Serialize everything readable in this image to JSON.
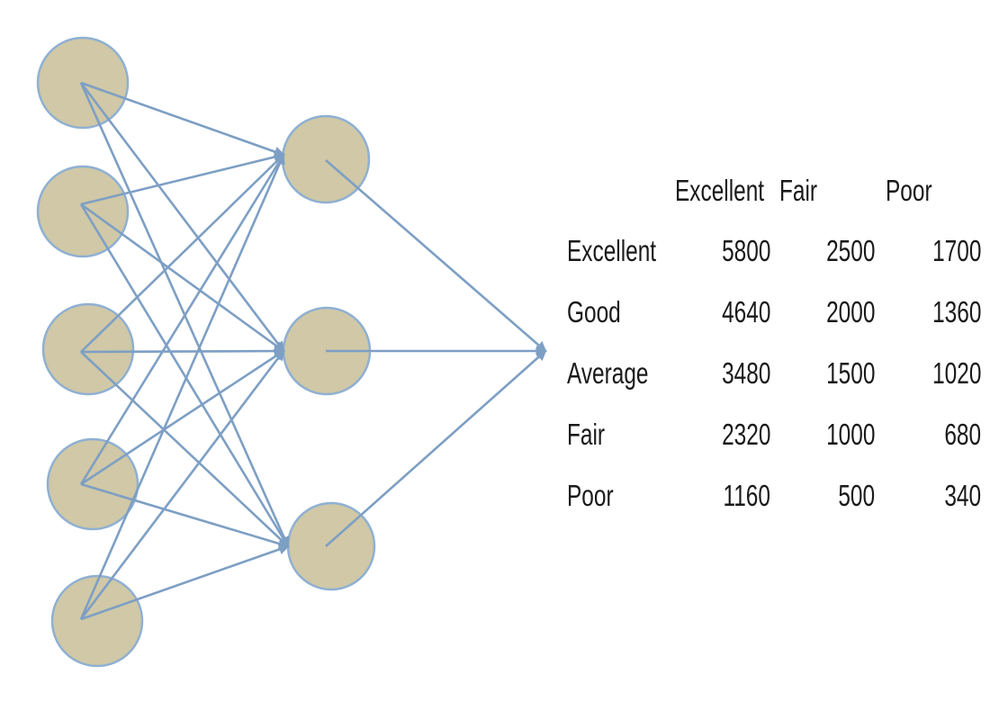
{
  "colors": {
    "node_fill": "#d0c8a6",
    "node_stroke": "#8fb0d2",
    "edge": "#7d9fc4",
    "text": "#1a1a1a"
  },
  "network": {
    "layers": [
      {
        "name": "input",
        "count": 5
      },
      {
        "name": "hidden",
        "count": 3
      },
      {
        "name": "output",
        "count": 1
      }
    ],
    "connections": "fully-connected"
  },
  "table": {
    "columns": [
      "Excellent",
      "Fair",
      "Poor"
    ],
    "rows": [
      {
        "label": "Excellent",
        "values": [
          "5800",
          "2500",
          "1700"
        ]
      },
      {
        "label": "Good",
        "values": [
          "4640",
          "2000",
          "1360"
        ]
      },
      {
        "label": "Average",
        "values": [
          "3480",
          "1500",
          "1020"
        ]
      },
      {
        "label": "Fair",
        "values": [
          "2320",
          "1000",
          "680"
        ]
      },
      {
        "label": "Poor",
        "values": [
          "1160",
          "500",
          "340"
        ]
      }
    ]
  }
}
